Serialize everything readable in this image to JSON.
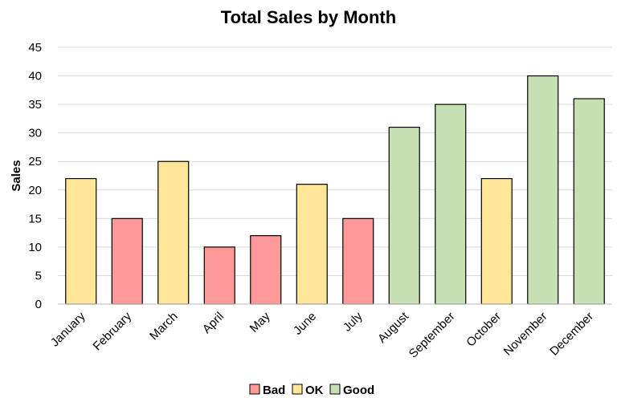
{
  "chart_data": {
    "type": "bar",
    "title": "Total Sales by Month",
    "xlabel": "",
    "ylabel": "Sales",
    "ylim": [
      0,
      45
    ],
    "yticks": [
      0,
      5,
      10,
      15,
      20,
      25,
      30,
      35,
      40,
      45
    ],
    "grid": true,
    "legend_position": "bottom",
    "categories": [
      "January",
      "February",
      "March",
      "April",
      "May",
      "June",
      "July",
      "August",
      "September",
      "October",
      "November",
      "December"
    ],
    "values": [
      22,
      15,
      25,
      10,
      12,
      21,
      15,
      31,
      35,
      22,
      40,
      36
    ],
    "groups": [
      "OK",
      "Bad",
      "OK",
      "Bad",
      "Bad",
      "OK",
      "Bad",
      "Good",
      "Good",
      "OK",
      "Good",
      "Good"
    ],
    "legend": [
      {
        "label": "Bad",
        "color": "#ff9999"
      },
      {
        "label": "OK",
        "color": "#ffe699"
      },
      {
        "label": "Good",
        "color": "#c6e0b4"
      }
    ]
  }
}
